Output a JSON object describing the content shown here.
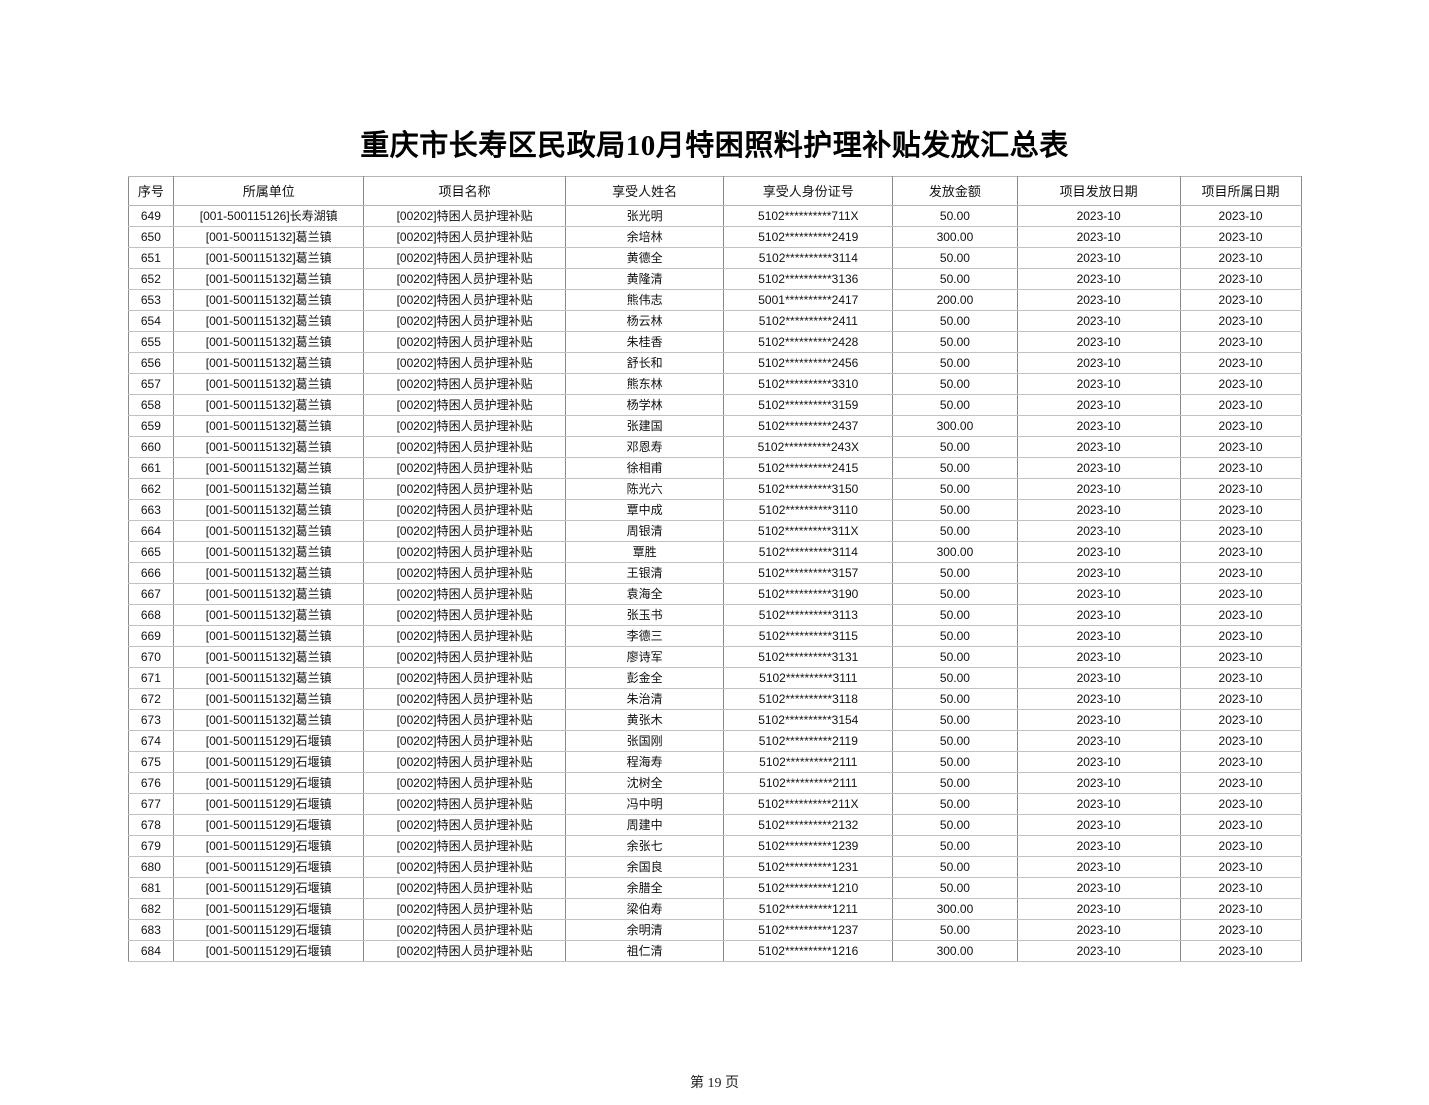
{
  "page": {
    "title": "重庆市长寿区民政局10月特困照料护理补贴发放汇总表",
    "footer": "第 19 页"
  },
  "colors": {
    "page_background": "#ffffff",
    "grid_border": "#8a8a8a",
    "text": "#111111"
  },
  "table": {
    "column_keys": [
      "index",
      "unit",
      "project",
      "name",
      "id_number",
      "amount",
      "issue_date",
      "period_date"
    ],
    "columns": [
      "序号",
      "所属单位",
      "项目名称",
      "享受人姓名",
      "享受人身份证号",
      "发放金额",
      "项目发放日期",
      "项目所属日期"
    ],
    "rows": [
      [
        "649",
        "[001-500115126]长寿湖镇",
        "[00202]特困人员护理补贴",
        "张光明",
        "5102**********711X",
        "50.00",
        "2023-10",
        "2023-10"
      ],
      [
        "650",
        "[001-500115132]葛兰镇",
        "[00202]特困人员护理补贴",
        "余培林",
        "5102**********2419",
        "300.00",
        "2023-10",
        "2023-10"
      ],
      [
        "651",
        "[001-500115132]葛兰镇",
        "[00202]特困人员护理补贴",
        "黄德全",
        "5102**********3114",
        "50.00",
        "2023-10",
        "2023-10"
      ],
      [
        "652",
        "[001-500115132]葛兰镇",
        "[00202]特困人员护理补贴",
        "黄隆清",
        "5102**********3136",
        "50.00",
        "2023-10",
        "2023-10"
      ],
      [
        "653",
        "[001-500115132]葛兰镇",
        "[00202]特困人员护理补贴",
        "熊伟志",
        "5001**********2417",
        "200.00",
        "2023-10",
        "2023-10"
      ],
      [
        "654",
        "[001-500115132]葛兰镇",
        "[00202]特困人员护理补贴",
        "杨云林",
        "5102**********2411",
        "50.00",
        "2023-10",
        "2023-10"
      ],
      [
        "655",
        "[001-500115132]葛兰镇",
        "[00202]特困人员护理补贴",
        "朱桂香",
        "5102**********2428",
        "50.00",
        "2023-10",
        "2023-10"
      ],
      [
        "656",
        "[001-500115132]葛兰镇",
        "[00202]特困人员护理补贴",
        "舒长和",
        "5102**********2456",
        "50.00",
        "2023-10",
        "2023-10"
      ],
      [
        "657",
        "[001-500115132]葛兰镇",
        "[00202]特困人员护理补贴",
        "熊东林",
        "5102**********3310",
        "50.00",
        "2023-10",
        "2023-10"
      ],
      [
        "658",
        "[001-500115132]葛兰镇",
        "[00202]特困人员护理补贴",
        "杨学林",
        "5102**********3159",
        "50.00",
        "2023-10",
        "2023-10"
      ],
      [
        "659",
        "[001-500115132]葛兰镇",
        "[00202]特困人员护理补贴",
        "张建国",
        "5102**********2437",
        "300.00",
        "2023-10",
        "2023-10"
      ],
      [
        "660",
        "[001-500115132]葛兰镇",
        "[00202]特困人员护理补贴",
        "邓恩寿",
        "5102**********243X",
        "50.00",
        "2023-10",
        "2023-10"
      ],
      [
        "661",
        "[001-500115132]葛兰镇",
        "[00202]特困人员护理补贴",
        "徐相甫",
        "5102**********2415",
        "50.00",
        "2023-10",
        "2023-10"
      ],
      [
        "662",
        "[001-500115132]葛兰镇",
        "[00202]特困人员护理补贴",
        "陈光六",
        "5102**********3150",
        "50.00",
        "2023-10",
        "2023-10"
      ],
      [
        "663",
        "[001-500115132]葛兰镇",
        "[00202]特困人员护理补贴",
        "覃中成",
        "5102**********3110",
        "50.00",
        "2023-10",
        "2023-10"
      ],
      [
        "664",
        "[001-500115132]葛兰镇",
        "[00202]特困人员护理补贴",
        "周银清",
        "5102**********311X",
        "50.00",
        "2023-10",
        "2023-10"
      ],
      [
        "665",
        "[001-500115132]葛兰镇",
        "[00202]特困人员护理补贴",
        "覃胜",
        "5102**********3114",
        "300.00",
        "2023-10",
        "2023-10"
      ],
      [
        "666",
        "[001-500115132]葛兰镇",
        "[00202]特困人员护理补贴",
        "王银清",
        "5102**********3157",
        "50.00",
        "2023-10",
        "2023-10"
      ],
      [
        "667",
        "[001-500115132]葛兰镇",
        "[00202]特困人员护理补贴",
        "袁海全",
        "5102**********3190",
        "50.00",
        "2023-10",
        "2023-10"
      ],
      [
        "668",
        "[001-500115132]葛兰镇",
        "[00202]特困人员护理补贴",
        "张玉书",
        "5102**********3113",
        "50.00",
        "2023-10",
        "2023-10"
      ],
      [
        "669",
        "[001-500115132]葛兰镇",
        "[00202]特困人员护理补贴",
        "李德三",
        "5102**********3115",
        "50.00",
        "2023-10",
        "2023-10"
      ],
      [
        "670",
        "[001-500115132]葛兰镇",
        "[00202]特困人员护理补贴",
        "廖诗军",
        "5102**********3131",
        "50.00",
        "2023-10",
        "2023-10"
      ],
      [
        "671",
        "[001-500115132]葛兰镇",
        "[00202]特困人员护理补贴",
        "彭金全",
        "5102**********3111",
        "50.00",
        "2023-10",
        "2023-10"
      ],
      [
        "672",
        "[001-500115132]葛兰镇",
        "[00202]特困人员护理补贴",
        "朱治清",
        "5102**********3118",
        "50.00",
        "2023-10",
        "2023-10"
      ],
      [
        "673",
        "[001-500115132]葛兰镇",
        "[00202]特困人员护理补贴",
        "黄张木",
        "5102**********3154",
        "50.00",
        "2023-10",
        "2023-10"
      ],
      [
        "674",
        "[001-500115129]石堰镇",
        "[00202]特困人员护理补贴",
        "张国刚",
        "5102**********2119",
        "50.00",
        "2023-10",
        "2023-10"
      ],
      [
        "675",
        "[001-500115129]石堰镇",
        "[00202]特困人员护理补贴",
        "程海寿",
        "5102**********2111",
        "50.00",
        "2023-10",
        "2023-10"
      ],
      [
        "676",
        "[001-500115129]石堰镇",
        "[00202]特困人员护理补贴",
        "沈树全",
        "5102**********2111",
        "50.00",
        "2023-10",
        "2023-10"
      ],
      [
        "677",
        "[001-500115129]石堰镇",
        "[00202]特困人员护理补贴",
        "冯中明",
        "5102**********211X",
        "50.00",
        "2023-10",
        "2023-10"
      ],
      [
        "678",
        "[001-500115129]石堰镇",
        "[00202]特困人员护理补贴",
        "周建中",
        "5102**********2132",
        "50.00",
        "2023-10",
        "2023-10"
      ],
      [
        "679",
        "[001-500115129]石堰镇",
        "[00202]特困人员护理补贴",
        "余张七",
        "5102**********1239",
        "50.00",
        "2023-10",
        "2023-10"
      ],
      [
        "680",
        "[001-500115129]石堰镇",
        "[00202]特困人员护理补贴",
        "余国良",
        "5102**********1231",
        "50.00",
        "2023-10",
        "2023-10"
      ],
      [
        "681",
        "[001-500115129]石堰镇",
        "[00202]特困人员护理补贴",
        "余腊全",
        "5102**********1210",
        "50.00",
        "2023-10",
        "2023-10"
      ],
      [
        "682",
        "[001-500115129]石堰镇",
        "[00202]特困人员护理补贴",
        "梁伯寿",
        "5102**********1211",
        "300.00",
        "2023-10",
        "2023-10"
      ],
      [
        "683",
        "[001-500115129]石堰镇",
        "[00202]特困人员护理补贴",
        "余明清",
        "5102**********1237",
        "50.00",
        "2023-10",
        "2023-10"
      ],
      [
        "684",
        "[001-500115129]石堰镇",
        "[00202]特困人员护理补贴",
        "祖仁清",
        "5102**********1216",
        "300.00",
        "2023-10",
        "2023-10"
      ]
    ]
  }
}
